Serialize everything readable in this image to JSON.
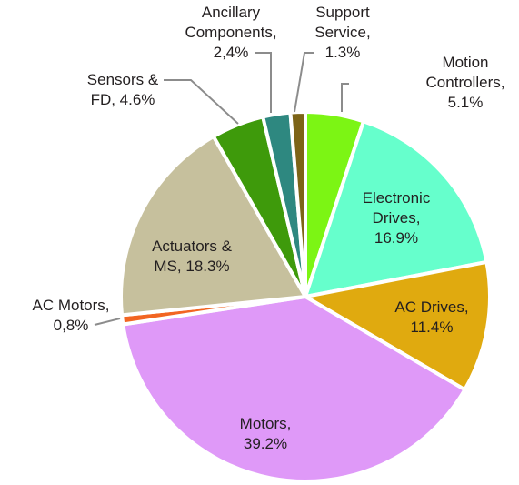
{
  "chart_data": {
    "type": "pie",
    "title": "",
    "start_angle_deg": 0,
    "direction": "clockwise",
    "slices": [
      {
        "label_lines": [
          "Motion",
          "Controllers,",
          "5.1%"
        ],
        "value": 5.1,
        "color": "#7cf514"
      },
      {
        "label_lines": [
          "Electronic",
          "Drives,",
          "16.9%"
        ],
        "value": 16.9,
        "color": "#66ffcc"
      },
      {
        "label_lines": [
          "AC Drives,",
          "11.4%"
        ],
        "value": 11.4,
        "color": "#e0aa0f"
      },
      {
        "label_lines": [
          "Motors,",
          "39.2%"
        ],
        "value": 39.2,
        "color": "#df99f8"
      },
      {
        "label_lines": [
          "AC Motors,",
          "0,8%"
        ],
        "value": 0.8,
        "color": "#f26522"
      },
      {
        "label_lines": [
          "Actuators &",
          "MS, 18.3%"
        ],
        "value": 18.3,
        "color": "#c6c09d"
      },
      {
        "label_lines": [
          "Sensors &",
          "FD, 4.6%"
        ],
        "value": 4.6,
        "color": "#3e9a0b"
      },
      {
        "label_lines": [
          "Ancillary",
          "Components,",
          "2,4%"
        ],
        "value": 2.4,
        "color": "#2e8880"
      },
      {
        "label_lines": [
          "Support",
          "Service,",
          "1.3%"
        ],
        "value": 1.3,
        "color": "#7d6417"
      }
    ]
  }
}
